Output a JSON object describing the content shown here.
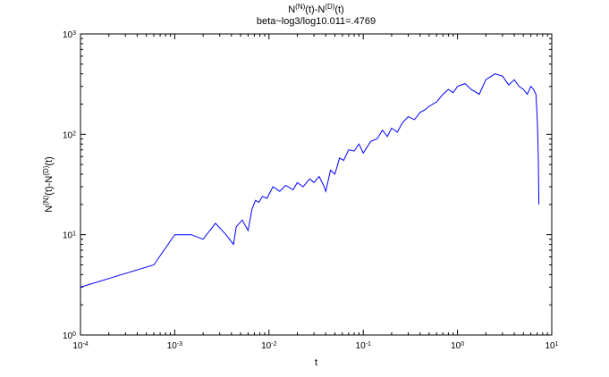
{
  "chart_data": {
    "type": "line",
    "title": {
      "line1_parts": [
        {
          "text": "N",
          "sup": false
        },
        {
          "text": "(N)",
          "sup": true
        },
        {
          "text": "(t)-N",
          "sup": false
        },
        {
          "text": "(D)",
          "sup": true
        },
        {
          "text": "(t)",
          "sup": false
        }
      ],
      "line2": "beta~log3/log10.011=.4769"
    },
    "xlabel": "t",
    "ylabel_parts": [
      {
        "text": "N",
        "sup": false
      },
      {
        "text": "(N)",
        "sup": true
      },
      {
        "text": "(t)-N",
        "sup": false
      },
      {
        "text": "(D)",
        "sup": true
      },
      {
        "text": "(t)",
        "sup": false
      }
    ],
    "x_scale": "log",
    "y_scale": "log",
    "xlim": [
      0.0001,
      10
    ],
    "ylim": [
      1,
      1000
    ],
    "grid": false,
    "legend": "none",
    "x_ticks": [
      {
        "value": 0.0001,
        "base": "10",
        "exp": "-4"
      },
      {
        "value": 0.001,
        "base": "10",
        "exp": "-3"
      },
      {
        "value": 0.01,
        "base": "10",
        "exp": "-2"
      },
      {
        "value": 0.1,
        "base": "10",
        "exp": "-1"
      },
      {
        "value": 1,
        "base": "10",
        "exp": "0"
      },
      {
        "value": 10,
        "base": "10",
        "exp": "1"
      }
    ],
    "y_ticks": [
      {
        "value": 1,
        "base": "10",
        "exp": "0"
      },
      {
        "value": 10,
        "base": "10",
        "exp": "1"
      },
      {
        "value": 100,
        "base": "10",
        "exp": "2"
      },
      {
        "value": 1000,
        "base": "10",
        "exp": "3"
      }
    ],
    "series": [
      {
        "color": "#0000ff",
        "x": [
          0.0001,
          0.0006,
          0.001,
          0.0015,
          0.002,
          0.0027,
          0.0035,
          0.0042,
          0.0045,
          0.0052,
          0.006,
          0.0066,
          0.0072,
          0.0078,
          0.0085,
          0.0095,
          0.011,
          0.013,
          0.015,
          0.018,
          0.02,
          0.023,
          0.027,
          0.03,
          0.034,
          0.038,
          0.04,
          0.045,
          0.05,
          0.056,
          0.062,
          0.07,
          0.08,
          0.09,
          0.1,
          0.12,
          0.14,
          0.16,
          0.18,
          0.2,
          0.23,
          0.26,
          0.3,
          0.35,
          0.4,
          0.45,
          0.5,
          0.6,
          0.7,
          0.8,
          0.9,
          1.0,
          1.2,
          1.4,
          1.7,
          2.0,
          2.5,
          3.0,
          3.5,
          4.0,
          4.5,
          5.0,
          5.5,
          6.0,
          6.4,
          6.8,
          7.0,
          7.1,
          7.2,
          7.3
        ],
        "y": [
          3,
          5,
          10,
          10,
          9,
          13,
          10,
          8,
          12,
          14,
          11,
          18,
          22,
          21,
          24,
          23,
          30,
          27,
          31,
          28,
          33,
          30,
          36,
          33,
          38,
          31,
          27,
          44,
          40,
          58,
          55,
          70,
          68,
          80,
          65,
          85,
          90,
          110,
          95,
          115,
          105,
          130,
          150,
          140,
          165,
          175,
          190,
          210,
          250,
          280,
          260,
          300,
          320,
          280,
          250,
          350,
          400,
          380,
          310,
          350,
          300,
          280,
          250,
          300,
          280,
          250,
          150,
          100,
          55,
          20
        ]
      }
    ]
  }
}
